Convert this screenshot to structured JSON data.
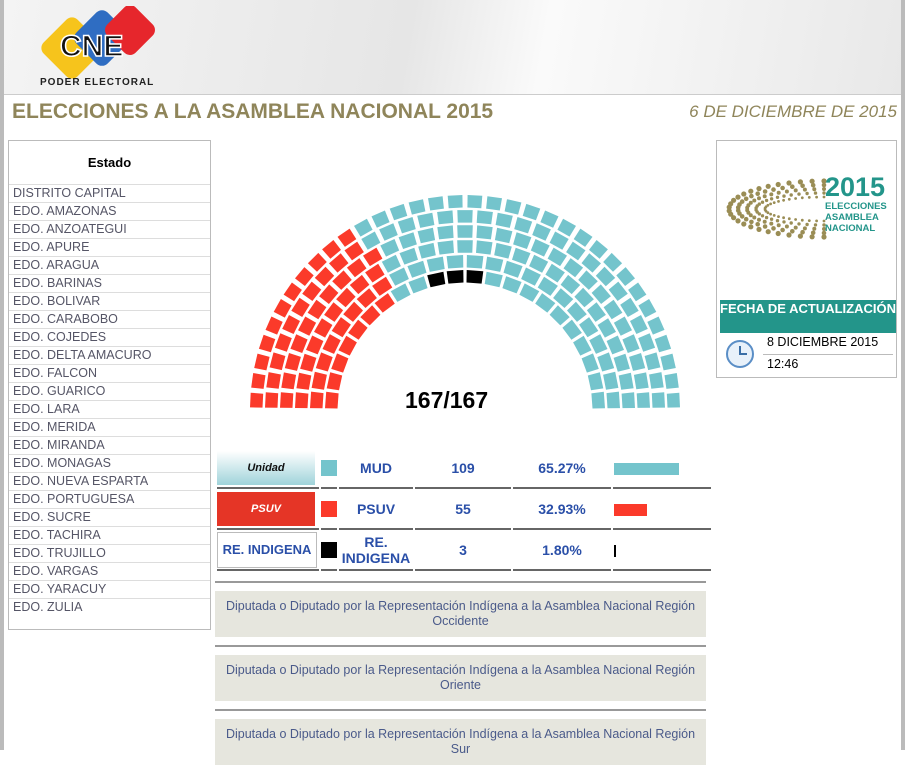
{
  "header": {
    "logo_text": "CNE",
    "logo_subtitle": "PODER ELECTORAL",
    "title": "ELECCIONES A LA ASAMBLEA NACIONAL 2015",
    "date": "6 DE DICIEMBRE DE 2015"
  },
  "states": {
    "heading": "Estado",
    "items": [
      "DISTRITO CAPITAL",
      "EDO. AMAZONAS",
      "EDO. ANZOATEGUI",
      "EDO. APURE",
      "EDO. ARAGUA",
      "EDO. BARINAS",
      "EDO. BOLIVAR",
      "EDO. CARABOBO",
      "EDO. COJEDES",
      "EDO. DELTA AMACURO",
      "EDO. FALCON",
      "EDO. GUARICO",
      "EDO. LARA",
      "EDO. MERIDA",
      "EDO. MIRANDA",
      "EDO. MONAGAS",
      "EDO. NUEVA ESPARTA",
      "EDO. PORTUGUESA",
      "EDO. SUCRE",
      "EDO. TACHIRA",
      "EDO. TRUJILLO",
      "EDO. VARGAS",
      "EDO. YARACUY",
      "EDO. ZULIA"
    ]
  },
  "hemicycle": {
    "count_label": "167/167",
    "total": 167
  },
  "results": [
    {
      "logo": "Unidad",
      "name": "MUD",
      "seats": 109,
      "percent": "65.27%",
      "pct": 65.27,
      "color": "#74c4cc"
    },
    {
      "logo": "PSUV",
      "name": "PSUV",
      "seats": 55,
      "percent": "32.93%",
      "pct": 32.93,
      "color": "#fb3a2a"
    },
    {
      "logo": "RE. INDIGENA",
      "name": "RE. INDIGENA",
      "seats": 3,
      "percent": "1.80%",
      "pct": 1.8,
      "color": "#000000"
    }
  ],
  "regions": [
    "Diputada o Diputado por la Representación Indígena a la Asamblea Nacional Región Occidente",
    "Diputada o Diputado por la Representación Indígena a la Asamblea Nacional Región Oriente",
    "Diputada o Diputado por la Representación Indígena a la Asamblea Nacional Región Sur"
  ],
  "info": {
    "logo_year": "2015",
    "logo_line1": "ELECCIONES",
    "logo_line2": "ASAMBLEA",
    "logo_line3": "NACIONAL",
    "update_heading": "FECHA DE ACTUALIZACIÓN",
    "update_date": "8 DICIEMBRE 2015",
    "update_time": "12:46",
    "icon": "clock-icon"
  }
}
